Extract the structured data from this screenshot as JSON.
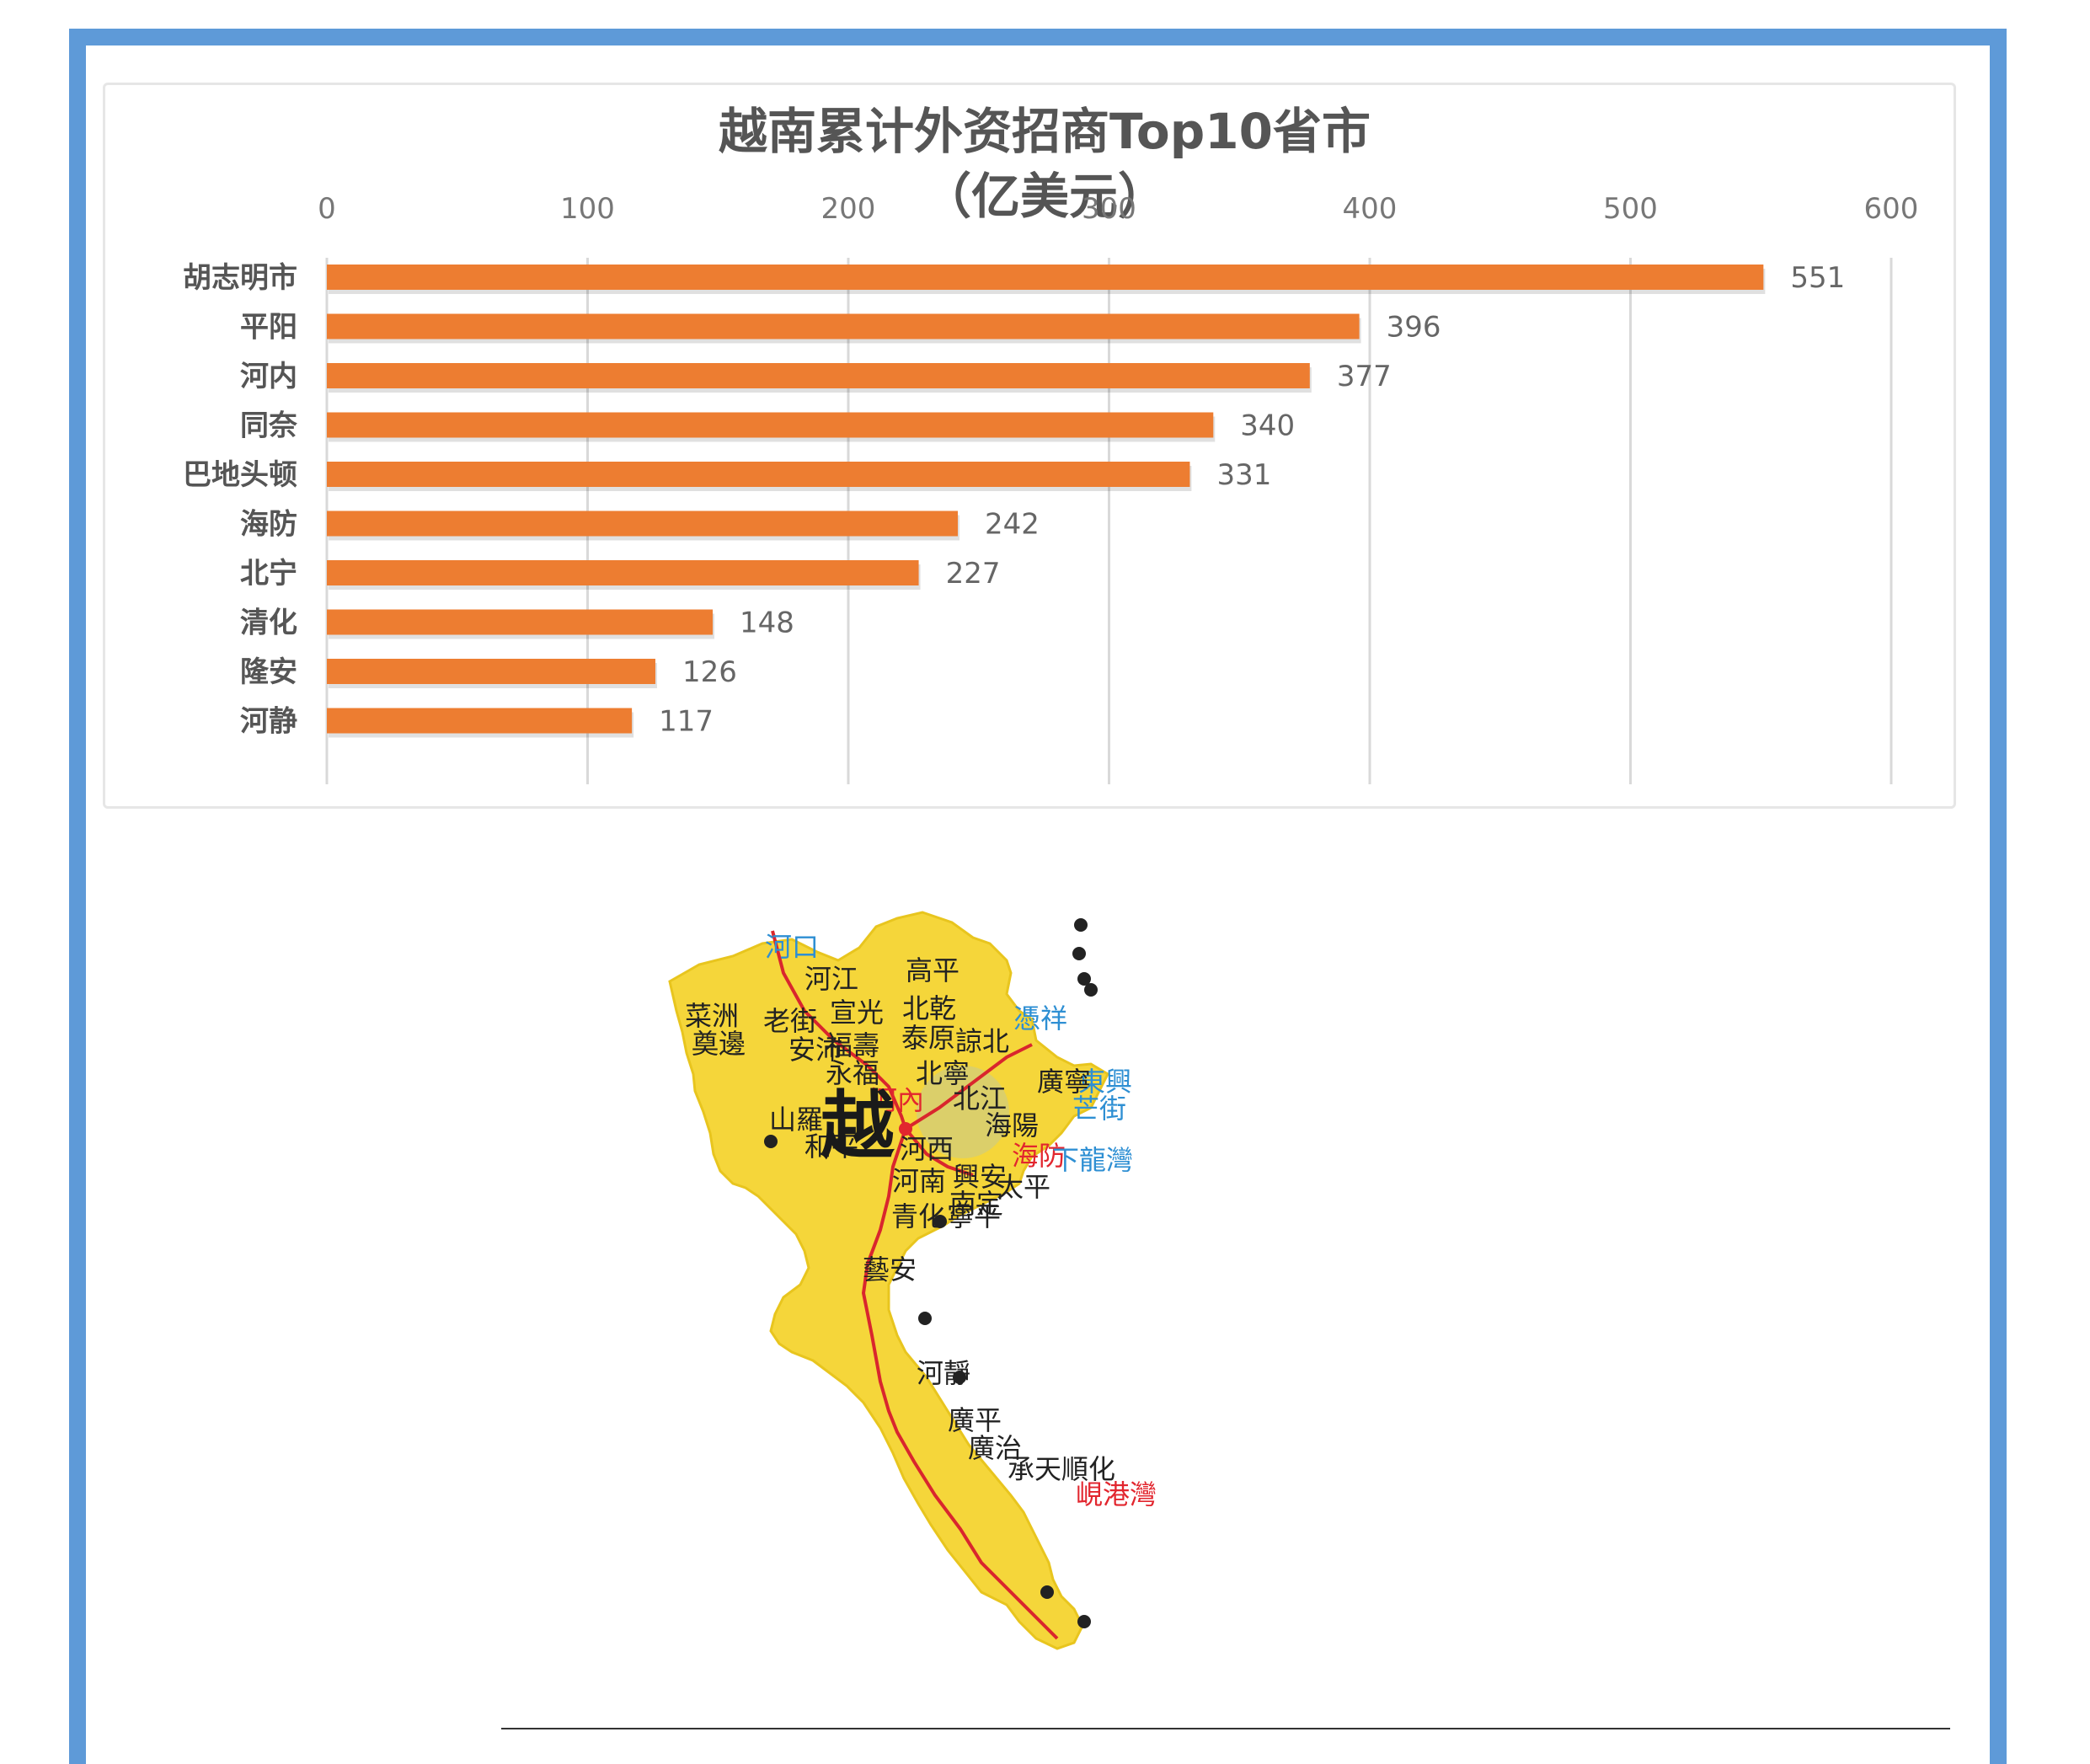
{
  "chart_data": {
    "type": "bar",
    "orientation": "horizontal",
    "title_line1": "越南累计外资招商Top10省市",
    "title_line2": "（亿美元）",
    "categories": [
      "胡志明市",
      "平阳",
      "河内",
      "同奈",
      "巴地头顿",
      "海防",
      "北宁",
      "清化",
      "隆安",
      "河静"
    ],
    "values": [
      551,
      396,
      377,
      340,
      331,
      242,
      227,
      148,
      126,
      117
    ],
    "xticks": [
      "0",
      "100",
      "200",
      "300",
      "400",
      "500",
      "600"
    ],
    "xlim": [
      0,
      600
    ],
    "grid": true,
    "bar_color": "#ed7d31",
    "data_labels": true
  },
  "map": {
    "land_color": "#f5d63a",
    "route_color": "#d9262d",
    "labels": [
      {
        "text": "河口",
        "style": "blue"
      },
      {
        "text": "河江",
        "style": "dark"
      },
      {
        "text": "高平",
        "style": "dark"
      },
      {
        "text": "菜洲",
        "style": "dark"
      },
      {
        "text": "老街",
        "style": "dark"
      },
      {
        "text": "宣光",
        "style": "dark"
      },
      {
        "text": "北乾",
        "style": "dark"
      },
      {
        "text": "憑祥",
        "style": "blue"
      },
      {
        "text": "奠邊",
        "style": "dark"
      },
      {
        "text": "安沛",
        "style": "dark"
      },
      {
        "text": "福壽",
        "style": "dark"
      },
      {
        "text": "泰原",
        "style": "dark"
      },
      {
        "text": "諒北",
        "style": "dark"
      },
      {
        "text": "東興",
        "style": "blue"
      },
      {
        "text": "永福",
        "style": "dark"
      },
      {
        "text": "北寧",
        "style": "dark"
      },
      {
        "text": "北江",
        "style": "dark"
      },
      {
        "text": "廣寧",
        "style": "dark"
      },
      {
        "text": "芒街",
        "style": "blue"
      },
      {
        "text": "山羅",
        "style": "dark"
      },
      {
        "text": "河內",
        "style": "red"
      },
      {
        "text": "海陽",
        "style": "dark"
      },
      {
        "text": "和平",
        "style": "dark"
      },
      {
        "text": "越",
        "style": "big"
      },
      {
        "text": "河西",
        "style": "dark"
      },
      {
        "text": "海防",
        "style": "red"
      },
      {
        "text": "下龍灣",
        "style": "blue"
      },
      {
        "text": "河南",
        "style": "dark"
      },
      {
        "text": "興安",
        "style": "dark"
      },
      {
        "text": "太平",
        "style": "dark"
      },
      {
        "text": "南定",
        "style": "dark"
      },
      {
        "text": "青化",
        "style": "dark"
      },
      {
        "text": "寧平",
        "style": "dark"
      },
      {
        "text": "藝安",
        "style": "dark"
      },
      {
        "text": "河靜",
        "style": "dark"
      },
      {
        "text": "廣平",
        "style": "dark"
      },
      {
        "text": "廣治",
        "style": "dark"
      },
      {
        "text": "承天順化",
        "style": "dark"
      },
      {
        "text": "峴港灣",
        "style": "red"
      }
    ]
  }
}
